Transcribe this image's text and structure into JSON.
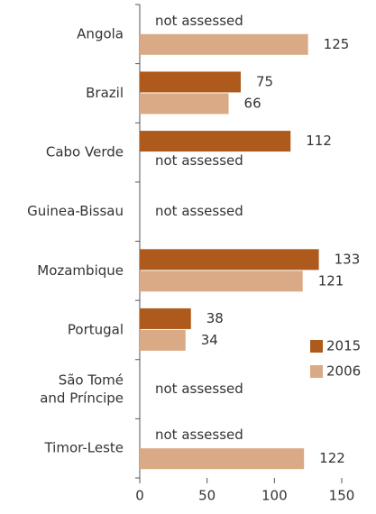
{
  "chart_data": {
    "type": "bar",
    "orientation": "horizontal",
    "categories": [
      "Angola",
      "Brazil",
      "Cabo Verde",
      "Guinea-Bissau",
      "Mozambique",
      "Portugal",
      "São Tomé\nand Príncipe",
      "Timor-Leste"
    ],
    "series": [
      {
        "name": "2015",
        "color": "#ad5a1c",
        "values": [
          null,
          75,
          112,
          null,
          133,
          38,
          null,
          null
        ]
      },
      {
        "name": "2006",
        "color": "#d9aa85",
        "values": [
          125,
          66,
          null,
          null,
          121,
          34,
          null,
          122
        ]
      }
    ],
    "missing_label": "not assessed",
    "xlim": [
      0,
      150
    ],
    "xticks": [
      0,
      50,
      100,
      150
    ],
    "legend": "lower right"
  }
}
